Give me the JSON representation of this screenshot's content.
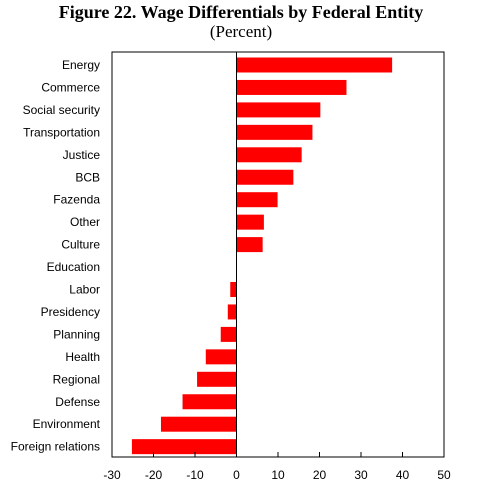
{
  "chart_data": {
    "type": "bar",
    "orientation": "horizontal",
    "title": "Figure 22. Wage Differentials by Federal Entity",
    "subtitle": "(Percent)",
    "categories": [
      "Energy",
      "Commerce",
      "Social security",
      "Transportation",
      "Justice",
      "BCB",
      "Fazenda",
      "Other",
      "Culture",
      "Education",
      "Labor",
      "Presidency",
      "Planning",
      "Health",
      "Regional",
      "Defense",
      "Environment",
      "Foreign relations"
    ],
    "values": [
      37.5,
      26.5,
      20.2,
      18.3,
      15.7,
      13.7,
      9.9,
      6.6,
      6.3,
      0,
      -1.5,
      -2.1,
      -3.8,
      -7.4,
      -9.5,
      -13.0,
      -18.2,
      -25.2
    ],
    "xlim": [
      -30,
      50
    ],
    "xticks": [
      -30,
      -20,
      -10,
      0,
      10,
      20,
      30,
      40,
      50
    ],
    "xlabel": "",
    "ylabel": "",
    "grid": false,
    "legend": "none",
    "bar_color": "#ff0000"
  }
}
